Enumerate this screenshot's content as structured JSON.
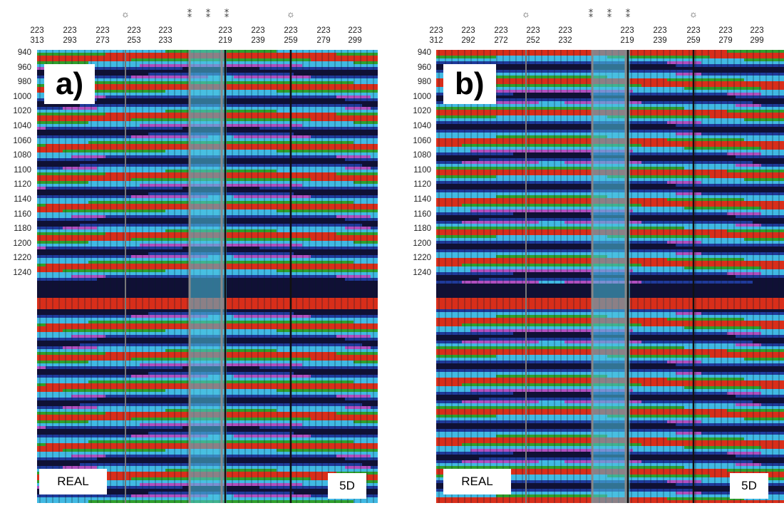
{
  "panels": [
    {
      "label": "a)",
      "left_tag": "REAL",
      "right_tag": "5D",
      "trace_headers": [
        [
          "223",
          "313"
        ],
        [
          "223",
          "293"
        ],
        [
          "223",
          "273"
        ],
        [
          "223",
          "253"
        ],
        [
          "223",
          "233"
        ],
        [
          "223",
          "219"
        ],
        [
          "223",
          "239"
        ],
        [
          "223",
          "259"
        ],
        [
          "223",
          "279"
        ],
        [
          "223",
          "299"
        ]
      ],
      "time_axis": [
        "940",
        "960",
        "980",
        "1000",
        "1020",
        "1040",
        "1060",
        "1080",
        "1100",
        "1120",
        "1140",
        "1160",
        "1180",
        "1200",
        "1220",
        "1240"
      ]
    },
    {
      "label": "b)",
      "left_tag": "REAL",
      "right_tag": "5D",
      "trace_headers": [
        [
          "223",
          "312"
        ],
        [
          "223",
          "292"
        ],
        [
          "223",
          "272"
        ],
        [
          "223",
          "252"
        ],
        [
          "223",
          "232"
        ],
        [
          "223",
          "219"
        ],
        [
          "223",
          "239"
        ],
        [
          "223",
          "259"
        ],
        [
          "223",
          "279"
        ],
        [
          "223",
          "299"
        ]
      ],
      "time_axis": [
        "940",
        "960",
        "980",
        "1000",
        "1020",
        "1040",
        "1060",
        "1080",
        "1100",
        "1120",
        "1140",
        "1160",
        "1180",
        "1200",
        "1220",
        "1240"
      ]
    }
  ],
  "colors": {
    "background": "#41b9e3",
    "trough": "#1f3a9a",
    "deep_trough": "#101035",
    "peak": "#2f9e2c",
    "strong_peak": "#d82e1a",
    "soft_trough": "#b04fbf"
  }
}
